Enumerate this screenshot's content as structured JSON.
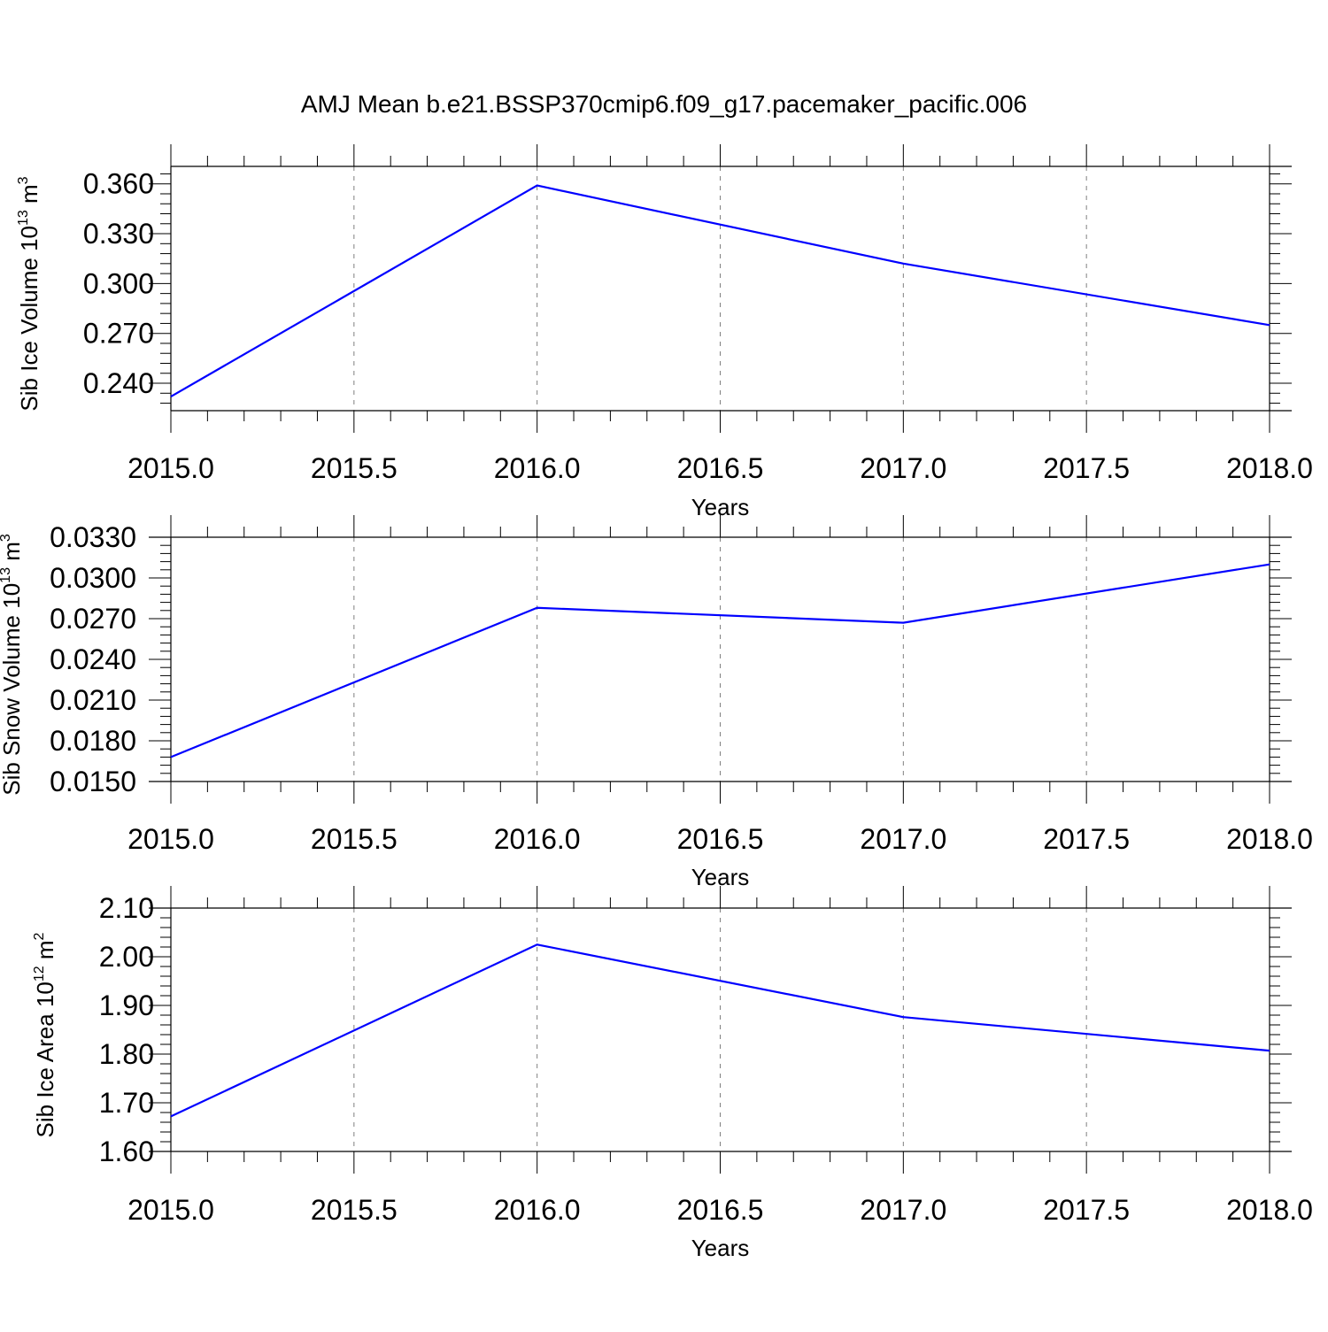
{
  "figure": {
    "title": "AMJ Mean b.e21.BSSP370cmip6.f09_g17.pacemaker_pacific.006"
  },
  "colors": {
    "series_line": "#0000ff",
    "axis": "#000000",
    "gridline": "#808080"
  },
  "chart_data": [
    {
      "type": "line",
      "xlabel": "Years",
      "ylabel": "Sib Ice Volume",
      "ylabel_exp": "10",
      "ylabel_exp_sup": "13",
      "ylabel_unit": "m",
      "ylabel_unit_sup": "3",
      "xlim": [
        2015.0,
        2018.0
      ],
      "ylim": [
        0.2235,
        0.3705
      ],
      "xticks": [
        "2015.0",
        "2015.5",
        "2016.0",
        "2016.5",
        "2017.0",
        "2017.5",
        "2018.0"
      ],
      "yticks": [
        "0.360",
        "0.330",
        "0.300",
        "0.270",
        "0.240"
      ],
      "ytick_values": [
        0.36,
        0.33,
        0.3,
        0.27,
        0.24
      ],
      "grid": "vertical-dashed",
      "x": [
        2015,
        2016,
        2017,
        2018
      ],
      "values": [
        0.232,
        0.359,
        0.312,
        0.275
      ]
    },
    {
      "type": "line",
      "xlabel": "Years",
      "ylabel": "Sib Snow Volume",
      "ylabel_exp": "10",
      "ylabel_exp_sup": "13",
      "ylabel_unit": "m",
      "ylabel_unit_sup": "3",
      "xlim": [
        2015.0,
        2018.0
      ],
      "ylim": [
        0.015,
        0.033
      ],
      "xticks": [
        "2015.0",
        "2015.5",
        "2016.0",
        "2016.5",
        "2017.0",
        "2017.5",
        "2018.0"
      ],
      "yticks": [
        "0.0330",
        "0.0300",
        "0.0270",
        "0.0240",
        "0.0210",
        "0.0180",
        "0.0150"
      ],
      "ytick_values": [
        0.033,
        0.03,
        0.027,
        0.024,
        0.021,
        0.018,
        0.015
      ],
      "grid": "vertical-dashed",
      "x": [
        2015,
        2016,
        2017,
        2018
      ],
      "values": [
        0.0168,
        0.0278,
        0.0267,
        0.031
      ]
    },
    {
      "type": "line",
      "xlabel": "Years",
      "ylabel": "Sib Ice Area",
      "ylabel_exp": "10",
      "ylabel_exp_sup": "12",
      "ylabel_unit": "m",
      "ylabel_unit_sup": "2",
      "xlim": [
        2015.0,
        2018.0
      ],
      "ylim": [
        1.6,
        2.1
      ],
      "xticks": [
        "2015.0",
        "2015.5",
        "2016.0",
        "2016.5",
        "2017.0",
        "2017.5",
        "2018.0"
      ],
      "yticks": [
        "2.10",
        "2.00",
        "1.90",
        "1.80",
        "1.70",
        "1.60"
      ],
      "ytick_values": [
        2.1,
        2.0,
        1.9,
        1.8,
        1.7,
        1.6
      ],
      "grid": "vertical-dashed",
      "x": [
        2015,
        2016,
        2017,
        2018
      ],
      "values": [
        1.672,
        2.025,
        1.876,
        1.807
      ]
    }
  ]
}
